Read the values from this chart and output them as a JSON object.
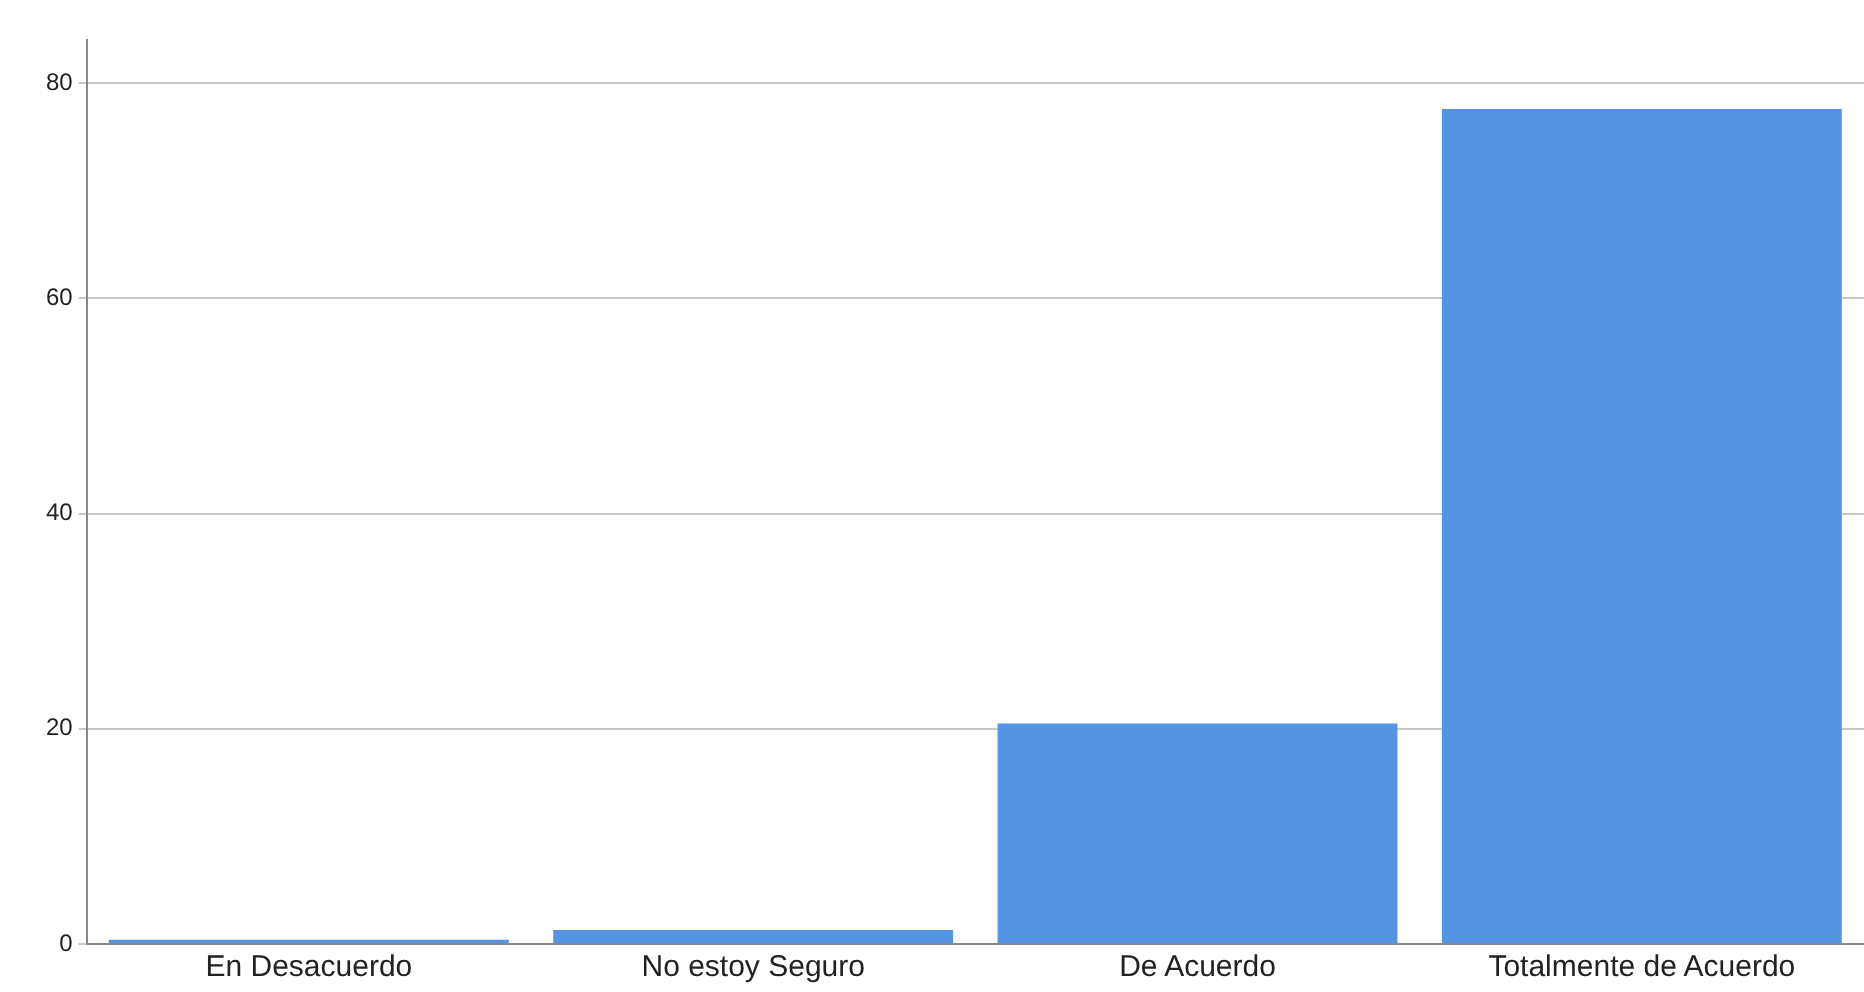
{
  "chart_data": {
    "type": "bar",
    "categories": [
      "En Desacuerdo",
      "No estoy Seguro",
      "De Acuerdo",
      "Totalmente de Acuerdo"
    ],
    "values": [
      0.4,
      1.3,
      20.5,
      77.6
    ],
    "color": "#5594e3",
    "ylim": [
      0,
      84
    ],
    "yticks": [
      0,
      20,
      40,
      60,
      80
    ],
    "grid": "y",
    "legend": false
  }
}
